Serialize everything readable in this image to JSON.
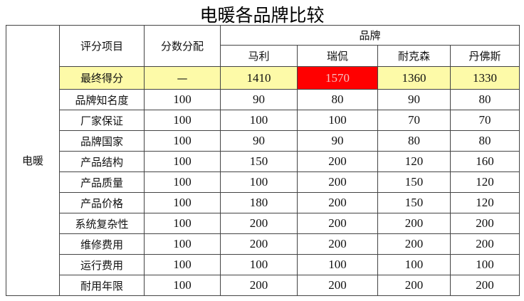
{
  "title": "电暖各品牌比较",
  "header": {
    "category_label": "",
    "item_label": "评分项目",
    "allocation_label": "分数分配",
    "brand_group_label": "品牌",
    "brands": [
      "马利",
      "瑞侃",
      "耐克森",
      "丹佛斯"
    ]
  },
  "category": "电暖",
  "final_row": {
    "label": "最终得分",
    "allocation": "—",
    "scores": [
      "1410",
      "1570",
      "1360",
      "1330"
    ],
    "highlight_color": "#fdfaa8",
    "winner_color": "#ff0000"
  },
  "rows": [
    {
      "label": "品牌知名度",
      "allocation": "100",
      "scores": [
        "90",
        "80",
        "90",
        "80"
      ]
    },
    {
      "label": "厂家保证",
      "allocation": "100",
      "scores": [
        "100",
        "100",
        "70",
        "70"
      ]
    },
    {
      "label": "品牌国家",
      "allocation": "100",
      "scores": [
        "90",
        "90",
        "80",
        "80"
      ]
    },
    {
      "label": "产品结构",
      "allocation": "100",
      "scores": [
        "150",
        "200",
        "120",
        "160"
      ]
    },
    {
      "label": "产品质量",
      "allocation": "100",
      "scores": [
        "100",
        "200",
        "150",
        "120"
      ]
    },
    {
      "label": "产品价格",
      "allocation": "100",
      "scores": [
        "180",
        "200",
        "150",
        "120"
      ]
    },
    {
      "label": "系统复杂性",
      "allocation": "100",
      "scores": [
        "200",
        "200",
        "200",
        "200"
      ]
    },
    {
      "label": "维修费用",
      "allocation": "100",
      "scores": [
        "200",
        "200",
        "200",
        "200"
      ]
    },
    {
      "label": "运行费用",
      "allocation": "100",
      "scores": [
        "100",
        "100",
        "100",
        "100"
      ]
    },
    {
      "label": "耐用年限",
      "allocation": "100",
      "scores": [
        "200",
        "200",
        "200",
        "200"
      ]
    }
  ]
}
